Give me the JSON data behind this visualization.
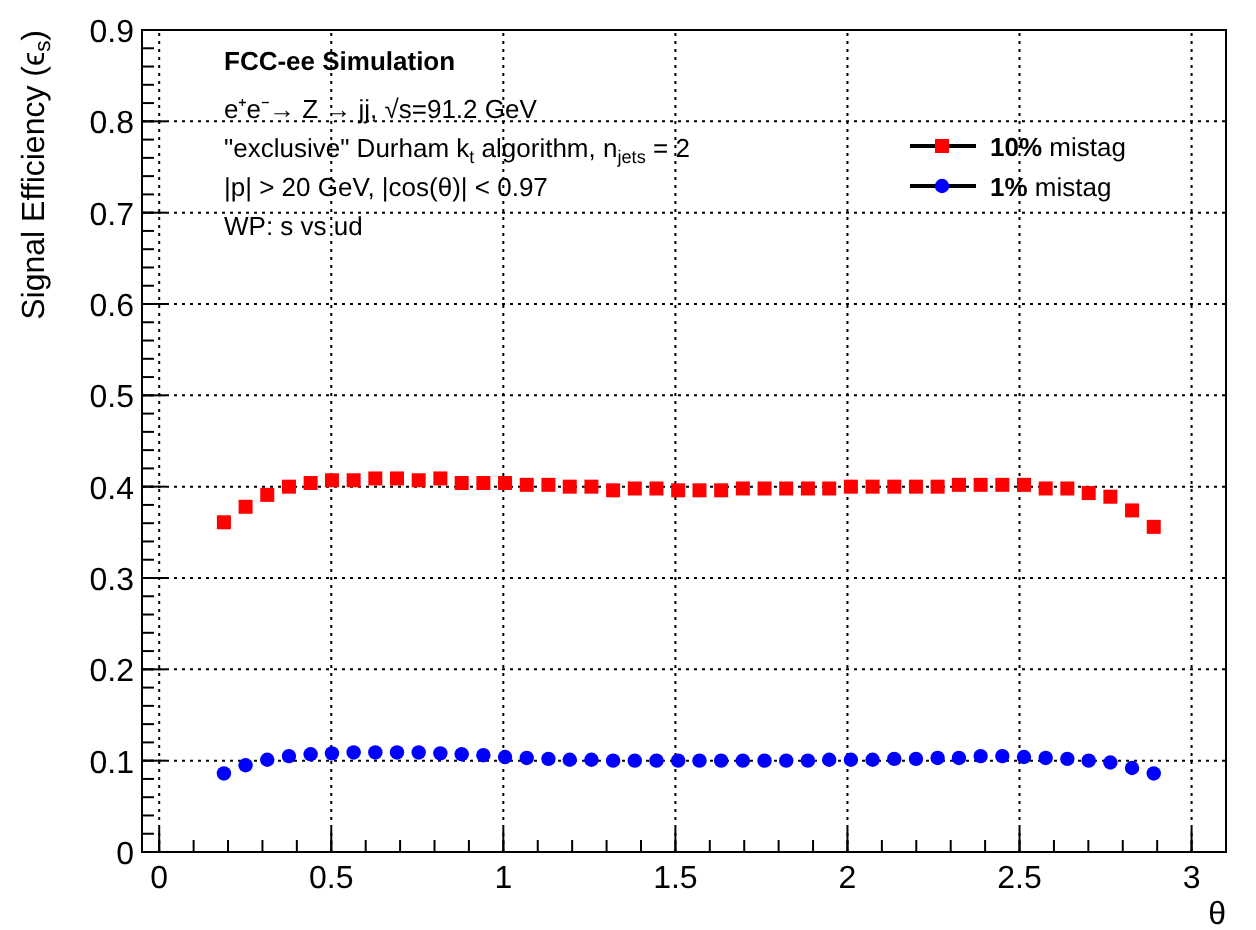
{
  "chart_data": {
    "type": "scatter",
    "title": "FCC-ee Simulation",
    "annotations": [
      "e⁺e⁻→ Z → jj, √s=91.2 GeV",
      "\"exclusive\" Durham k$_{t}$ algorithm, n$_{jets}$ = 2",
      "|p| > 20 GeV, |cos(θ)| < 0.97",
      "WP: s vs ud"
    ],
    "xlabel": "θ",
    "ylabel": "Signal Efficiency (ϵ$_{s}$)",
    "x": [
      0.188,
      0.251,
      0.314,
      0.377,
      0.44,
      0.502,
      0.565,
      0.628,
      0.691,
      0.754,
      0.817,
      0.879,
      0.942,
      1.005,
      1.068,
      1.131,
      1.193,
      1.256,
      1.319,
      1.382,
      1.445,
      1.508,
      1.57,
      1.633,
      1.696,
      1.759,
      1.822,
      1.885,
      1.947,
      2.01,
      2.073,
      2.136,
      2.199,
      2.262,
      2.324,
      2.387,
      2.45,
      2.513,
      2.576,
      2.639,
      2.701,
      2.764,
      2.827,
      2.89
    ],
    "series": [
      {
        "name": "10% mistag",
        "color": "#ff0000",
        "marker": "square",
        "values": [
          0.361,
          0.378,
          0.391,
          0.4,
          0.404,
          0.407,
          0.407,
          0.409,
          0.409,
          0.407,
          0.409,
          0.404,
          0.404,
          0.404,
          0.402,
          0.402,
          0.4,
          0.4,
          0.396,
          0.398,
          0.398,
          0.396,
          0.396,
          0.396,
          0.398,
          0.398,
          0.398,
          0.398,
          0.398,
          0.4,
          0.4,
          0.4,
          0.4,
          0.4,
          0.402,
          0.402,
          0.402,
          0.402,
          0.398,
          0.398,
          0.393,
          0.389,
          0.374,
          0.356
        ]
      },
      {
        "name": "1% mistag",
        "color": "#0000ff",
        "marker": "circle",
        "values": [
          0.086,
          0.095,
          0.101,
          0.105,
          0.107,
          0.108,
          0.109,
          0.109,
          0.109,
          0.109,
          0.108,
          0.107,
          0.106,
          0.104,
          0.103,
          0.102,
          0.101,
          0.101,
          0.1,
          0.1,
          0.1,
          0.1,
          0.1,
          0.1,
          0.1,
          0.1,
          0.1,
          0.1,
          0.101,
          0.101,
          0.101,
          0.102,
          0.102,
          0.103,
          0.103,
          0.105,
          0.105,
          0.104,
          0.103,
          0.102,
          0.1,
          0.098,
          0.092,
          0.086
        ]
      }
    ],
    "xlim": [
      -0.05,
      3.1
    ],
    "xticks": [
      0,
      0.5,
      1,
      1.5,
      2,
      2.5,
      3
    ],
    "ylim": [
      0,
      0.9
    ],
    "yticks": [
      0,
      0.1,
      0.2,
      0.3,
      0.4,
      0.5,
      0.6,
      0.7,
      0.8,
      0.9
    ],
    "grid": true,
    "legend": "top right"
  }
}
